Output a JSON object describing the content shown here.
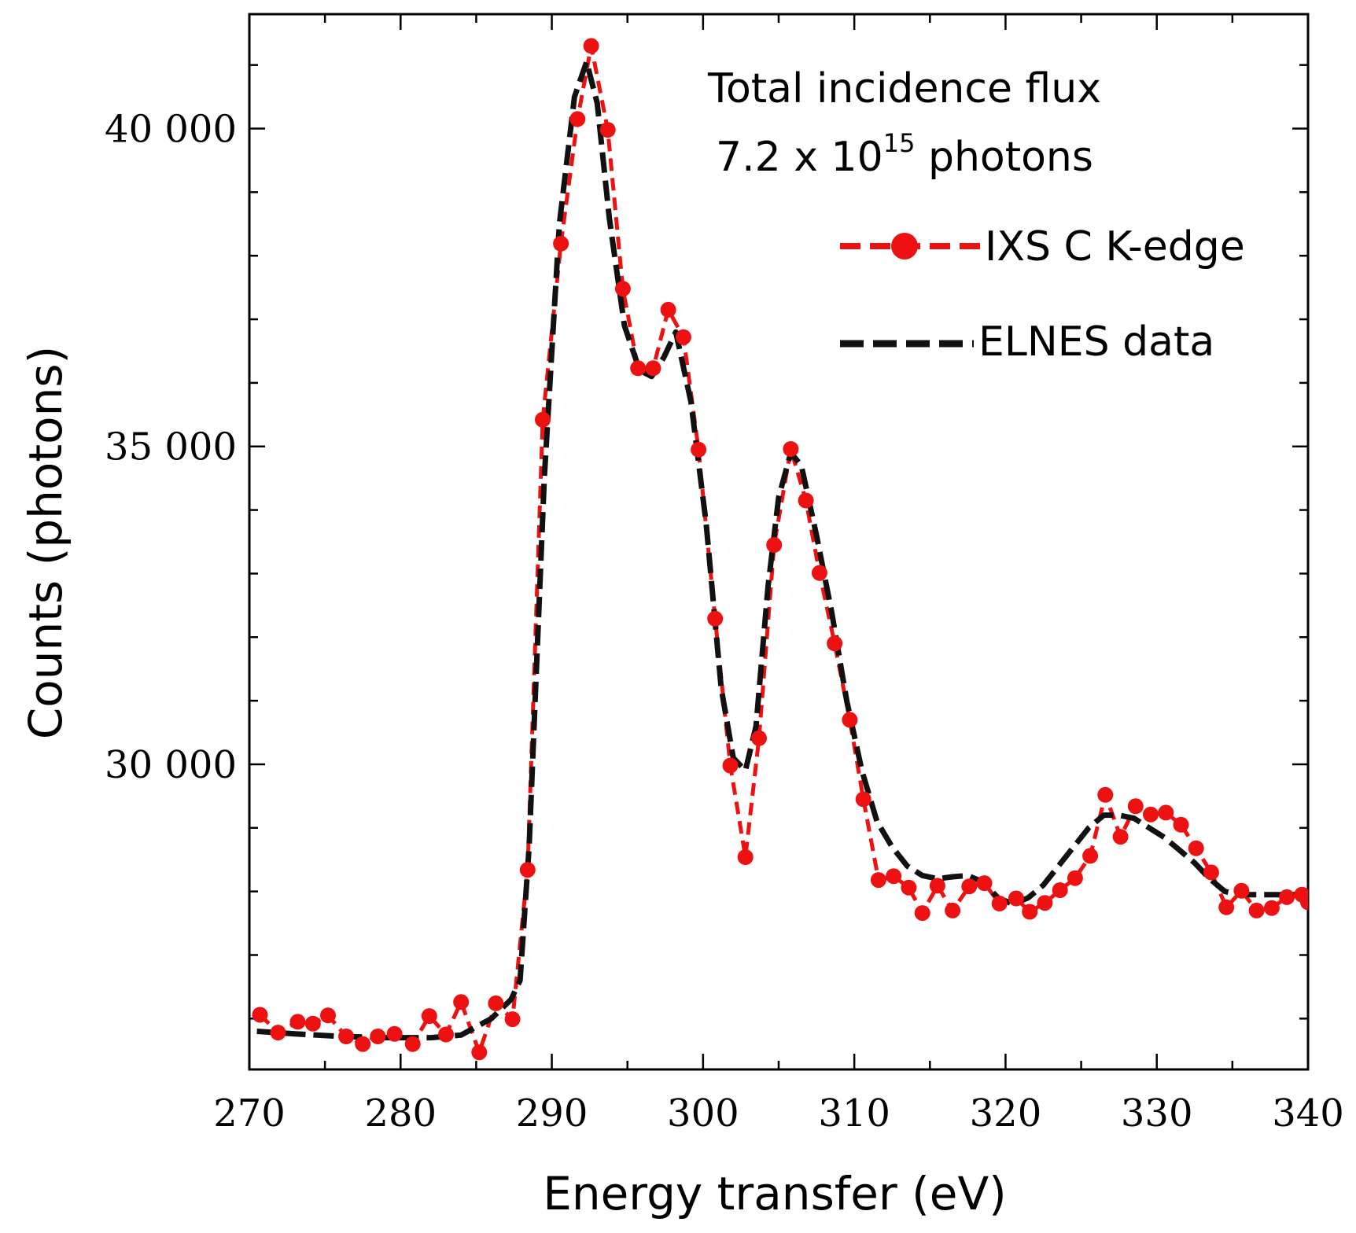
{
  "chart_data": {
    "type": "line",
    "xlabel": "Energy transfer (eV)",
    "ylabel": "Counts (photons)",
    "xlim": [
      270,
      340
    ],
    "ylim": [
      25200,
      41800
    ],
    "x_ticks": [
      270,
      280,
      290,
      300,
      310,
      320,
      330,
      340
    ],
    "x_tick_labels": [
      "270",
      "280",
      "290",
      "300",
      "310",
      "320",
      "330",
      "340"
    ],
    "y_ticks": [
      30000,
      35000,
      40000
    ],
    "y_tick_labels": [
      "30 000",
      "35 000",
      "40 000"
    ],
    "annotation": {
      "line1": "Total incidence flux",
      "line2_prefix": "7.2 x 10",
      "line2_sup": "15",
      "line2_suffix": " photons"
    },
    "colors": {
      "ixs": "#ee1111",
      "elnes": "#111111"
    },
    "series": [
      {
        "name": "IXS C K-edge",
        "style": "red dashed line with filled circle markers",
        "x": [
          270.7,
          271.9,
          273.2,
          274.2,
          275.2,
          276.4,
          277.5,
          278.5,
          279.6,
          280.8,
          281.9,
          283.0,
          284.0,
          285.2,
          286.3,
          287.4,
          288.4,
          289.4,
          290.6,
          291.7,
          292.6,
          293.7,
          294.7,
          295.7,
          296.7,
          297.7,
          298.7,
          299.7,
          300.8,
          301.8,
          302.8,
          303.7,
          304.7,
          305.8,
          306.8,
          307.7,
          308.7,
          309.7,
          310.6,
          311.6,
          312.6,
          313.6,
          314.5,
          315.5,
          316.5,
          317.6,
          318.6,
          319.6,
          320.7,
          321.6,
          322.6,
          323.6,
          324.6,
          325.6,
          326.6,
          327.6,
          328.6,
          329.6,
          330.6,
          331.6,
          332.6,
          333.6,
          334.6,
          335.6,
          336.6,
          337.6,
          338.6,
          339.6,
          340.0
        ],
        "y": [
          26060,
          25780,
          25950,
          25920,
          26050,
          25720,
          25600,
          25720,
          25760,
          25600,
          26040,
          25750,
          26260,
          25470,
          26240,
          25990,
          28340,
          35420,
          38190,
          40150,
          41300,
          39980,
          37480,
          36230,
          36230,
          37150,
          36720,
          34950,
          32290,
          29980,
          28540,
          30410,
          33450,
          34960,
          34150,
          33010,
          31900,
          30700,
          29450,
          28180,
          28240,
          28060,
          27660,
          28090,
          27700,
          28080,
          28130,
          27810,
          27890,
          27680,
          27820,
          28020,
          28210,
          28560,
          29520,
          28860,
          29340,
          29210,
          29240,
          29050,
          28680,
          28300,
          27750,
          28010,
          27700,
          27740,
          27910,
          27950,
          27830
        ]
      },
      {
        "name": "ELNES data",
        "style": "black dashed line",
        "x": [
          270.5,
          273.0,
          276.0,
          279.0,
          282.0,
          284.0,
          286.0,
          287.3,
          287.9,
          288.5,
          289.5,
          290.5,
          291.5,
          292.3,
          293.0,
          293.8,
          294.8,
          295.8,
          296.6,
          297.4,
          298.2,
          299.2,
          300.2,
          301.2,
          302.0,
          302.8,
          303.5,
          304.3,
          305.0,
          305.8,
          306.5,
          307.5,
          308.5,
          309.5,
          310.5,
          311.5,
          312.5,
          313.5,
          314.5,
          315.5,
          316.5,
          317.5,
          318.5,
          319.5,
          320.5,
          321.5,
          322.5,
          323.5,
          324.5,
          325.5,
          326.5,
          327.5,
          328.5,
          329.5,
          330.5,
          331.5,
          332.5,
          333.5,
          334.5,
          335.5,
          336.5,
          337.5,
          338.5,
          339.5,
          340.0
        ],
        "y": [
          25800,
          25760,
          25720,
          25700,
          25700,
          25740,
          26000,
          26300,
          26600,
          28700,
          34500,
          38500,
          40500,
          41050,
          40400,
          38600,
          36900,
          36200,
          36100,
          36400,
          36800,
          35700,
          33800,
          31200,
          30100,
          29900,
          30600,
          32800,
          34200,
          34900,
          34700,
          33600,
          32400,
          31000,
          29900,
          29100,
          28700,
          28400,
          28250,
          28200,
          28230,
          28250,
          28150,
          27900,
          27800,
          27900,
          28100,
          28400,
          28700,
          29000,
          29200,
          29200,
          29150,
          29000,
          28850,
          28650,
          28450,
          28200,
          28000,
          27950,
          27950,
          27950,
          27950,
          27950,
          27950
        ]
      }
    ]
  }
}
